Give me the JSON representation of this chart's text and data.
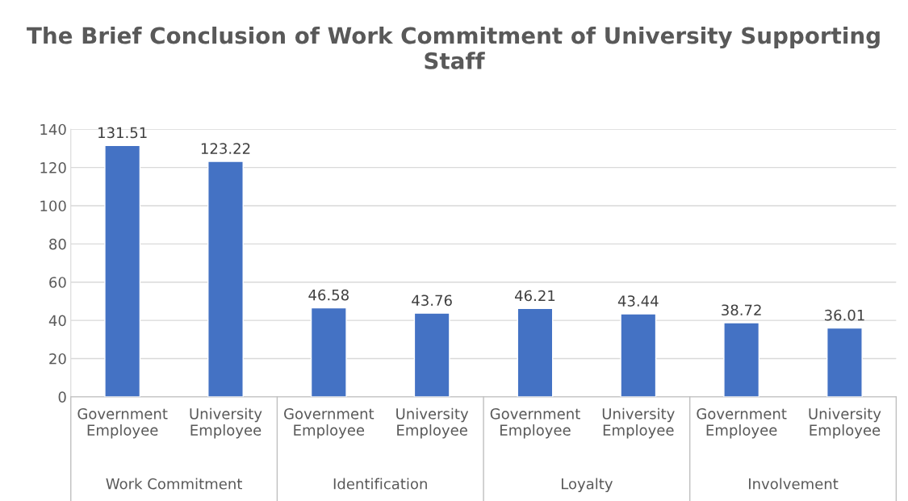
{
  "chart_data": {
    "type": "bar",
    "title": "The Brief Conclusion of Work Commitment of University Supporting Staff",
    "categories": [
      "Government Employee",
      "University Employee",
      "Government Employee",
      "University Employee",
      "Government Employee",
      "University Employee",
      "Government Employee",
      "University Employee"
    ],
    "values": [
      131.51,
      123.22,
      46.58,
      43.76,
      46.21,
      43.44,
      38.72,
      36.01
    ],
    "color": "#4472c4",
    "ylim": [
      0,
      140
    ],
    "yticks": [
      0,
      20,
      40,
      60,
      80,
      100,
      120,
      140
    ],
    "grid": "y",
    "data_labels": true,
    "annotations": [
      "Work Commitment",
      "Identification",
      "Loyalty",
      "Involvement"
    ]
  }
}
